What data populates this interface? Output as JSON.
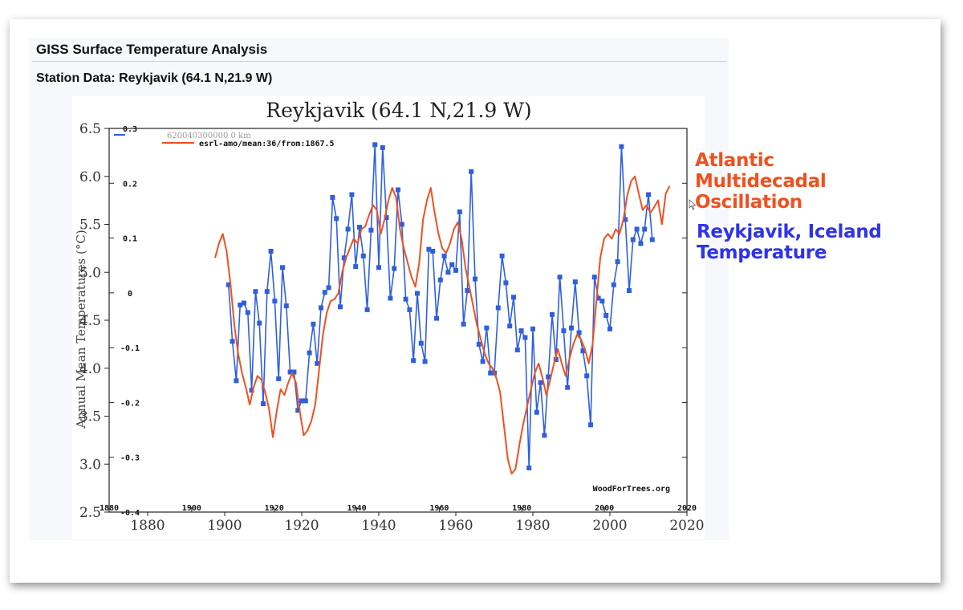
{
  "header": {
    "title": "GISS Surface Temperature Analysis",
    "station": "Station Data: Reykjavik (64.1 N,21.9 W)"
  },
  "annotations": {
    "amo_label": "Atlantic Multidecadal Oscillation",
    "reykjavik_label": "Reykjavik, Iceland Temperature"
  },
  "colors": {
    "temperature_series": "#2f5fe0",
    "amo_series": "#f0501e",
    "amo_label": "#f0501e",
    "reykjavik_label": "#2f33e8"
  },
  "icons": [
    "cursor-icon"
  ],
  "chart_data": {
    "type": "line",
    "title": "Reykjavik (64.1 N,21.9 W)",
    "ylabel": "Annual Mean Temperatures (°C)",
    "xlim": [
      1870,
      2020
    ],
    "ylim": [
      2.5,
      6.5
    ],
    "x_ticks": [
      "1880",
      "1900",
      "1920",
      "1940",
      "1960",
      "1980",
      "2000",
      "2020"
    ],
    "y_ticks": [
      "2.5",
      "3.0",
      "3.5",
      "4.0",
      "4.5",
      "5.0",
      "5.5",
      "6.0",
      "6.5"
    ],
    "secondary_axis": {
      "xlim": [
        1880,
        2020
      ],
      "ylim": [
        -0.4,
        0.3
      ],
      "x_ticks": [
        "1880",
        "1900",
        "1920",
        "1940",
        "1960",
        "1980",
        "2000",
        "2020"
      ],
      "y_ticks": [
        "-0.4",
        "-0.3",
        "-0.2",
        "-0.1",
        "0",
        "0.1",
        "0.2",
        "0.3"
      ]
    },
    "legend": {
      "placement": "top-left",
      "entries": [
        "620040300000 0 km",
        "esrl-amo/mean:36/from:1867.5"
      ]
    },
    "watermark": "WoodForTrees.org",
    "series": [
      {
        "name": "620040300000 0 km",
        "color": "#2f5fe0",
        "axis": "primary",
        "markers": true,
        "points": [
          [
            1901,
            4.87
          ],
          [
            1902,
            4.28
          ],
          [
            1903,
            3.87
          ],
          [
            1904,
            4.66
          ],
          [
            1905,
            4.68
          ],
          [
            1906,
            4.58
          ],
          [
            1907,
            3.77
          ],
          [
            1908,
            4.8
          ],
          [
            1909,
            4.47
          ],
          [
            1910,
            3.63
          ],
          [
            1911,
            4.8
          ],
          [
            1912,
            5.22
          ],
          [
            1913,
            4.7
          ],
          [
            1914,
            3.89
          ],
          [
            1915,
            5.05
          ],
          [
            1916,
            4.65
          ],
          [
            1917,
            3.96
          ],
          [
            1918,
            3.96
          ],
          [
            1919,
            3.56
          ],
          [
            1920,
            3.66
          ],
          [
            1921,
            3.66
          ],
          [
            1922,
            4.16
          ],
          [
            1923,
            4.46
          ],
          [
            1924,
            4.05
          ],
          [
            1925,
            4.63
          ],
          [
            1926,
            4.79
          ],
          [
            1927,
            4.84
          ],
          [
            1928,
            5.78
          ],
          [
            1929,
            5.56
          ],
          [
            1930,
            4.64
          ],
          [
            1931,
            5.15
          ],
          [
            1932,
            5.45
          ],
          [
            1933,
            5.81
          ],
          [
            1934,
            5.06
          ],
          [
            1935,
            5.47
          ],
          [
            1936,
            5.17
          ],
          [
            1937,
            4.61
          ],
          [
            1938,
            5.44
          ],
          [
            1939,
            6.33
          ],
          [
            1940,
            5.05
          ],
          [
            1941,
            6.3
          ],
          [
            1942,
            5.57
          ],
          [
            1943,
            4.73
          ],
          [
            1944,
            5.04
          ],
          [
            1945,
            5.86
          ],
          [
            1946,
            5.5
          ],
          [
            1947,
            4.72
          ],
          [
            1948,
            4.61
          ],
          [
            1949,
            4.08
          ],
          [
            1950,
            4.78
          ],
          [
            1951,
            4.26
          ],
          [
            1952,
            4.07
          ],
          [
            1953,
            5.24
          ],
          [
            1954,
            5.22
          ],
          [
            1955,
            4.52
          ],
          [
            1956,
            4.92
          ],
          [
            1957,
            5.17
          ],
          [
            1958,
            5.0
          ],
          [
            1959,
            5.08
          ],
          [
            1960,
            5.02
          ],
          [
            1961,
            5.63
          ],
          [
            1962,
            4.46
          ],
          [
            1963,
            4.81
          ],
          [
            1964,
            6.05
          ],
          [
            1965,
            4.93
          ],
          [
            1966,
            4.25
          ],
          [
            1967,
            4.07
          ],
          [
            1968,
            4.42
          ],
          [
            1969,
            3.95
          ],
          [
            1970,
            3.95
          ],
          [
            1971,
            4.63
          ],
          [
            1972,
            5.17
          ],
          [
            1973,
            4.89
          ],
          [
            1974,
            4.44
          ],
          [
            1975,
            4.74
          ],
          [
            1976,
            4.19
          ],
          [
            1977,
            4.39
          ],
          [
            1978,
            4.32
          ],
          [
            1979,
            2.96
          ],
          [
            1980,
            4.41
          ],
          [
            1981,
            3.54
          ],
          [
            1982,
            3.85
          ],
          [
            1983,
            3.3
          ],
          [
            1984,
            3.91
          ],
          [
            1985,
            4.56
          ],
          [
            1986,
            4.09
          ],
          [
            1987,
            4.95
          ],
          [
            1988,
            4.39
          ],
          [
            1989,
            3.8
          ],
          [
            1990,
            4.42
          ],
          [
            1991,
            4.9
          ],
          [
            1992,
            4.37
          ],
          [
            1993,
            4.18
          ],
          [
            1994,
            3.92
          ],
          [
            1995,
            3.41
          ],
          [
            1996,
            4.95
          ],
          [
            1997,
            4.73
          ],
          [
            1998,
            4.7
          ],
          [
            1999,
            4.55
          ],
          [
            2000,
            4.41
          ],
          [
            2001,
            4.87
          ],
          [
            2002,
            5.11
          ],
          [
            2003,
            6.31
          ],
          [
            2004,
            5.55
          ],
          [
            2005,
            4.81
          ],
          [
            2006,
            5.34
          ],
          [
            2007,
            5.45
          ],
          [
            2008,
            5.3
          ],
          [
            2009,
            5.45
          ],
          [
            2010,
            5.81
          ],
          [
            2011,
            5.34
          ]
        ]
      },
      {
        "name": "esrl-amo/mean:36/from:1867.5",
        "color": "#f0501e",
        "axis": "primary",
        "markers": false,
        "points": [
          [
            1897.5,
            5.15
          ],
          [
            1898.5,
            5.3
          ],
          [
            1899.5,
            5.4
          ],
          [
            1900.5,
            5.22
          ],
          [
            1901.5,
            4.88
          ],
          [
            1902.5,
            4.45
          ],
          [
            1903.5,
            4.15
          ],
          [
            1904.5,
            3.95
          ],
          [
            1905.5,
            3.8
          ],
          [
            1906.5,
            3.62
          ],
          [
            1907.5,
            3.8
          ],
          [
            1908.5,
            3.92
          ],
          [
            1909.5,
            3.88
          ],
          [
            1910.5,
            3.75
          ],
          [
            1911.5,
            3.58
          ],
          [
            1912.5,
            3.28
          ],
          [
            1913.5,
            3.55
          ],
          [
            1914.5,
            3.78
          ],
          [
            1915.5,
            3.72
          ],
          [
            1916.5,
            3.85
          ],
          [
            1917.5,
            3.95
          ],
          [
            1918.5,
            3.85
          ],
          [
            1919.5,
            3.55
          ],
          [
            1920.5,
            3.3
          ],
          [
            1921.5,
            3.35
          ],
          [
            1922.5,
            3.45
          ],
          [
            1923.5,
            3.62
          ],
          [
            1924.5,
            3.98
          ],
          [
            1925.5,
            4.35
          ],
          [
            1926.5,
            4.58
          ],
          [
            1927.5,
            4.7
          ],
          [
            1928.5,
            4.72
          ],
          [
            1929.5,
            4.78
          ],
          [
            1930.5,
            5.0
          ],
          [
            1931.5,
            5.15
          ],
          [
            1932.5,
            5.25
          ],
          [
            1933.5,
            5.35
          ],
          [
            1934.5,
            5.3
          ],
          [
            1935.5,
            5.45
          ],
          [
            1936.5,
            5.48
          ],
          [
            1937.5,
            5.6
          ],
          [
            1938.5,
            5.7
          ],
          [
            1939.5,
            5.65
          ],
          [
            1940.5,
            5.4
          ],
          [
            1941.5,
            5.55
          ],
          [
            1942.5,
            5.75
          ],
          [
            1943.5,
            5.88
          ],
          [
            1944.5,
            5.78
          ],
          [
            1945.5,
            5.45
          ],
          [
            1946.5,
            5.25
          ],
          [
            1947.5,
            5.1
          ],
          [
            1948.5,
            4.95
          ],
          [
            1949.5,
            4.85
          ],
          [
            1950.5,
            5.1
          ],
          [
            1951.5,
            5.55
          ],
          [
            1952.5,
            5.75
          ],
          [
            1953.5,
            5.88
          ],
          [
            1954.5,
            5.62
          ],
          [
            1955.5,
            5.4
          ],
          [
            1956.5,
            5.25
          ],
          [
            1957.5,
            5.2
          ],
          [
            1958.5,
            5.3
          ],
          [
            1959.5,
            5.45
          ],
          [
            1960.5,
            5.52
          ],
          [
            1961.5,
            5.35
          ],
          [
            1962.5,
            5.05
          ],
          [
            1963.5,
            4.85
          ],
          [
            1964.5,
            4.65
          ],
          [
            1965.5,
            4.45
          ],
          [
            1966.5,
            4.3
          ],
          [
            1967.5,
            4.15
          ],
          [
            1968.5,
            4.05
          ],
          [
            1969.5,
            4.0
          ],
          [
            1970.5,
            3.9
          ],
          [
            1971.5,
            3.75
          ],
          [
            1972.5,
            3.4
          ],
          [
            1973.5,
            3.05
          ],
          [
            1974.5,
            2.9
          ],
          [
            1975.5,
            2.95
          ],
          [
            1976.5,
            3.2
          ],
          [
            1977.5,
            3.42
          ],
          [
            1978.5,
            3.6
          ],
          [
            1979.5,
            3.78
          ],
          [
            1980.5,
            3.95
          ],
          [
            1981.5,
            4.05
          ],
          [
            1982.5,
            3.9
          ],
          [
            1983.5,
            3.72
          ],
          [
            1984.5,
            3.88
          ],
          [
            1985.5,
            4.05
          ],
          [
            1986.5,
            4.2
          ],
          [
            1987.5,
            4.05
          ],
          [
            1988.5,
            3.92
          ],
          [
            1989.5,
            4.1
          ],
          [
            1990.5,
            4.25
          ],
          [
            1991.5,
            4.35
          ],
          [
            1992.5,
            4.3
          ],
          [
            1993.5,
            4.2
          ],
          [
            1994.5,
            4.05
          ],
          [
            1995.5,
            4.25
          ],
          [
            1996.5,
            4.7
          ],
          [
            1997.5,
            5.15
          ],
          [
            1998.5,
            5.35
          ],
          [
            1999.5,
            5.4
          ],
          [
            2000.5,
            5.35
          ],
          [
            2001.5,
            5.45
          ],
          [
            2002.5,
            5.4
          ],
          [
            2003.5,
            5.55
          ],
          [
            2004.5,
            5.8
          ],
          [
            2005.5,
            5.95
          ],
          [
            2006.5,
            6.0
          ],
          [
            2007.5,
            5.82
          ],
          [
            2008.5,
            5.65
          ],
          [
            2009.5,
            5.7
          ],
          [
            2010.5,
            5.62
          ],
          [
            2011.5,
            5.68
          ],
          [
            2012.5,
            5.75
          ],
          [
            2013.5,
            5.5
          ],
          [
            2014.5,
            5.82
          ],
          [
            2015.5,
            5.9
          ]
        ]
      }
    ]
  }
}
